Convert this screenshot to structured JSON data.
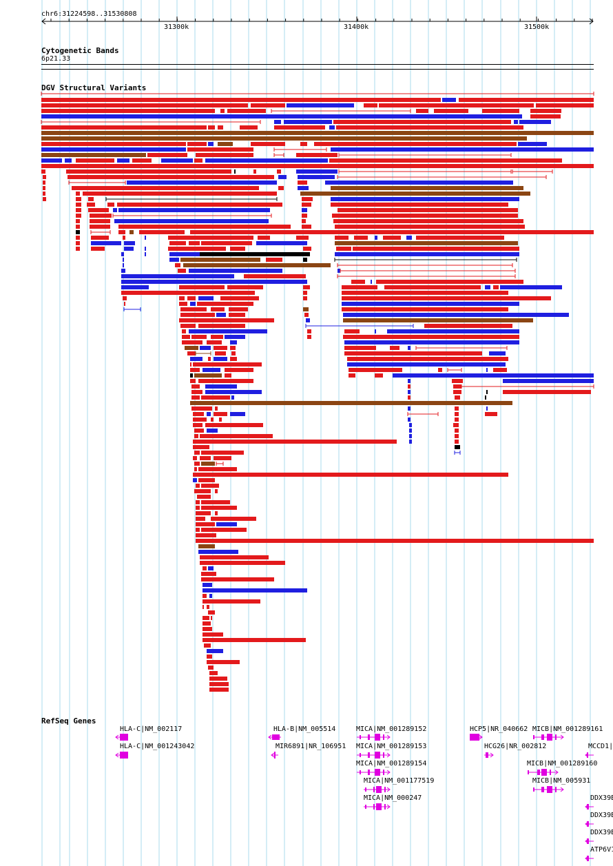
{
  "position": "chr6:31224598..31530808",
  "ruler": {
    "ticks": [
      {
        "label": "31300k"
      },
      {
        "label": "31400k"
      },
      {
        "label": "31500k"
      }
    ]
  },
  "tracks": {
    "cytoband": {
      "title": "Cytogenetic Bands",
      "band": "6p21.33"
    },
    "dgv": {
      "title": "DGV Structural Variants"
    },
    "refseq": {
      "title": "RefSeq Genes"
    }
  },
  "colors": {
    "gain": "#e31a1c",
    "loss": "#1f1fe0",
    "both": "#8b4513",
    "other": "#000000",
    "gene": "#e000e0",
    "grid": "#aadbee"
  },
  "genes": [
    {
      "label": "HLA-C|NM_002117"
    },
    {
      "label": "HLA-C|NM_001243042"
    },
    {
      "label": "HLA-B|NM_005514"
    },
    {
      "label": "MIR6891|NR_106951"
    },
    {
      "label": "MICA|NM_001289152"
    },
    {
      "label": "MICA|NM_001289153"
    },
    {
      "label": "MICA|NM_001289154"
    },
    {
      "label": "MICA|NM_001177519"
    },
    {
      "label": "MICA|NM_000247"
    },
    {
      "label": "HCP5|NR_040662"
    },
    {
      "label": "HCG26|NR_002812"
    },
    {
      "label": "MICB|NM_001289161"
    },
    {
      "label": "MICB|NM_001289160"
    },
    {
      "label": "MICB|NM_005931"
    },
    {
      "label": "MCCD1|"
    },
    {
      "label": "DDX39B"
    },
    {
      "label": "DDX39B"
    },
    {
      "label": "DDX39B"
    },
    {
      "label": "ATP6V1"
    }
  ]
}
